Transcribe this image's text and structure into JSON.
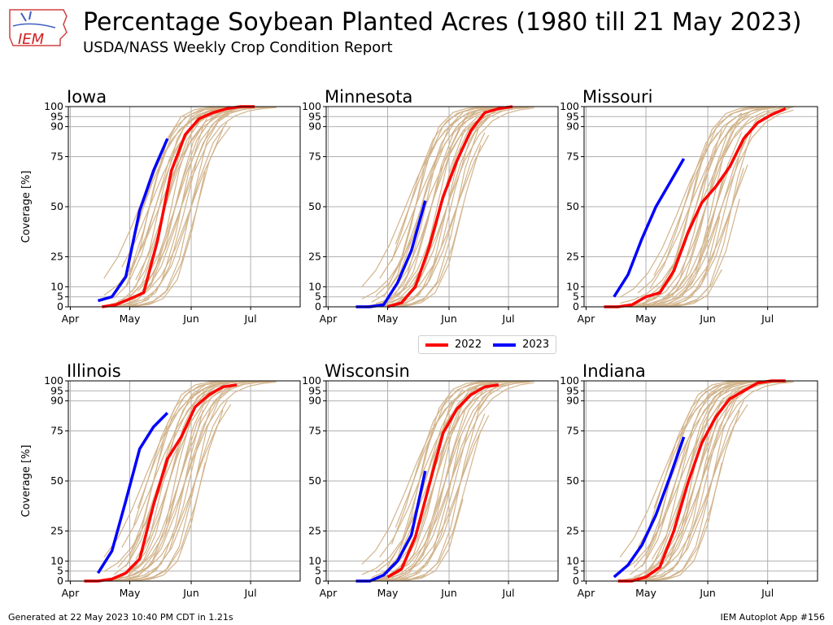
{
  "title": "Percentage Soybean Planted Acres (1980 till 21 May 2023)",
  "subtitle": "USDA/NASS Weekly Crop Condition Report",
  "logo_text": "IEM",
  "footer_left": "Generated at 22 May 2023 10:40 PM CDT in 1.21s",
  "footer_right": "IEM Autoplot App #156",
  "colors": {
    "history": "#d2b48c",
    "y2022": "#ff0000",
    "y2023": "#0000ff",
    "grid": "#b0b0b0"
  },
  "legend": [
    {
      "label": "2022",
      "color": "#ff0000"
    },
    {
      "label": "2023",
      "color": "#0000ff"
    }
  ],
  "chart_data": [
    {
      "type": "line",
      "title": "Iowa",
      "ylabel": "Coverage [%]",
      "xlim_doy": [
        90,
        207
      ],
      "ylim": [
        0,
        100
      ],
      "yticks": [
        0,
        5,
        10,
        25,
        50,
        75,
        90,
        95,
        100
      ],
      "xticks": [
        {
          "label": "Apr",
          "doy": 91
        },
        {
          "label": "May",
          "doy": 121
        },
        {
          "label": "Jun",
          "doy": 152
        },
        {
          "label": "Jul",
          "doy": 182
        }
      ],
      "series": [
        {
          "name": "2022",
          "x": [
            107,
            114,
            121,
            128,
            135,
            142,
            149,
            156,
            163,
            170,
            177,
            184
          ],
          "y": [
            0,
            1,
            4,
            7,
            33,
            68,
            86,
            94,
            97,
            99,
            100,
            100
          ]
        },
        {
          "name": "2023",
          "x": [
            105,
            112,
            119,
            126,
            133,
            140
          ],
          "y": [
            3,
            5,
            15,
            48,
            68,
            84
          ]
        }
      ],
      "history_shift": 0
    },
    {
      "type": "line",
      "title": "Minnesota",
      "ylabel": "",
      "xlim_doy": [
        90,
        207
      ],
      "ylim": [
        0,
        100
      ],
      "yticks": [
        0,
        5,
        10,
        25,
        50,
        75,
        90,
        95,
        100
      ],
      "xticks": [
        {
          "label": "Apr",
          "doy": 91
        },
        {
          "label": "May",
          "doy": 121
        },
        {
          "label": "Jun",
          "doy": 152
        },
        {
          "label": "Jul",
          "doy": 182
        }
      ],
      "series": [
        {
          "name": "2022",
          "x": [
            121,
            128,
            135,
            142,
            149,
            156,
            163,
            170,
            177,
            184
          ],
          "y": [
            0,
            2,
            10,
            30,
            55,
            73,
            88,
            97,
            99,
            100
          ]
        },
        {
          "name": "2023",
          "x": [
            105,
            112,
            119,
            126,
            133,
            140
          ],
          "y": [
            0,
            0,
            1,
            12,
            28,
            53
          ]
        }
      ],
      "history_shift": 4
    },
    {
      "type": "line",
      "title": "Missouri",
      "ylabel": "",
      "xlim_doy": [
        90,
        207
      ],
      "ylim": [
        0,
        100
      ],
      "yticks": [
        0,
        5,
        10,
        25,
        50,
        75,
        90,
        95,
        100
      ],
      "xticks": [
        {
          "label": "Apr",
          "doy": 91
        },
        {
          "label": "May",
          "doy": 121
        },
        {
          "label": "Jun",
          "doy": 152
        },
        {
          "label": "Jul",
          "doy": 182
        }
      ],
      "series": [
        {
          "name": "2022",
          "x": [
            100,
            107,
            114,
            121,
            128,
            135,
            142,
            149,
            156,
            163,
            170,
            177,
            184,
            191
          ],
          "y": [
            0,
            0,
            1,
            5,
            7,
            18,
            37,
            52,
            60,
            70,
            84,
            92,
            96,
            99
          ]
        },
        {
          "name": "2023",
          "x": [
            105,
            112,
            119,
            126,
            133,
            140
          ],
          "y": [
            5,
            16,
            34,
            50,
            62,
            74
          ]
        }
      ],
      "history_shift": 12
    },
    {
      "type": "line",
      "title": "Illinois",
      "ylabel": "Coverage [%]",
      "xlim_doy": [
        90,
        207
      ],
      "ylim": [
        0,
        100
      ],
      "yticks": [
        0,
        5,
        10,
        25,
        50,
        75,
        90,
        95,
        100
      ],
      "xticks": [
        {
          "label": "Apr",
          "doy": 91
        },
        {
          "label": "May",
          "doy": 121
        },
        {
          "label": "Jun",
          "doy": 152
        },
        {
          "label": "Jul",
          "doy": 182
        }
      ],
      "series": [
        {
          "name": "2022",
          "x": [
            98,
            105,
            112,
            119,
            126,
            133,
            140,
            147,
            154,
            161,
            168,
            175
          ],
          "y": [
            0,
            0,
            1,
            4,
            11,
            38,
            61,
            72,
            87,
            93,
            97,
            98
          ]
        },
        {
          "name": "2023",
          "x": [
            105,
            112,
            119,
            126,
            133,
            140
          ],
          "y": [
            4,
            15,
            40,
            66,
            77,
            84
          ]
        }
      ],
      "history_shift": 2
    },
    {
      "type": "line",
      "title": "Wisconsin",
      "ylabel": "",
      "xlim_doy": [
        90,
        207
      ],
      "ylim": [
        0,
        100
      ],
      "yticks": [
        0,
        5,
        10,
        25,
        50,
        75,
        90,
        95,
        100
      ],
      "xticks": [
        {
          "label": "Apr",
          "doy": 91
        },
        {
          "label": "May",
          "doy": 121
        },
        {
          "label": "Jun",
          "doy": 152
        },
        {
          "label": "Jul",
          "doy": 182
        }
      ],
      "series": [
        {
          "name": "2022",
          "x": [
            121,
            128,
            135,
            142,
            149,
            156,
            163,
            170,
            177
          ],
          "y": [
            2,
            6,
            22,
            48,
            74,
            86,
            93,
            97,
            98
          ]
        },
        {
          "name": "2023",
          "x": [
            105,
            112,
            119,
            126,
            133,
            140
          ],
          "y": [
            0,
            0,
            3,
            10,
            23,
            55
          ]
        }
      ],
      "history_shift": 6
    },
    {
      "type": "line",
      "title": "Indiana",
      "ylabel": "",
      "xlim_doy": [
        90,
        207
      ],
      "ylim": [
        0,
        100
      ],
      "yticks": [
        0,
        5,
        10,
        25,
        50,
        75,
        90,
        95,
        100
      ],
      "xticks": [
        {
          "label": "Apr",
          "doy": 91
        },
        {
          "label": "May",
          "doy": 121
        },
        {
          "label": "Jun",
          "doy": 152
        },
        {
          "label": "Jul",
          "doy": 182
        }
      ],
      "series": [
        {
          "name": "2022",
          "x": [
            107,
            114,
            121,
            128,
            135,
            142,
            149,
            156,
            163,
            170,
            177,
            184,
            191
          ],
          "y": [
            0,
            0,
            2,
            7,
            25,
            49,
            69,
            82,
            91,
            95,
            99,
            100,
            100
          ]
        },
        {
          "name": "2023",
          "x": [
            105,
            112,
            119,
            126,
            133,
            140
          ],
          "y": [
            2,
            8,
            18,
            33,
            52,
            72
          ]
        }
      ],
      "history_shift": 2
    }
  ]
}
